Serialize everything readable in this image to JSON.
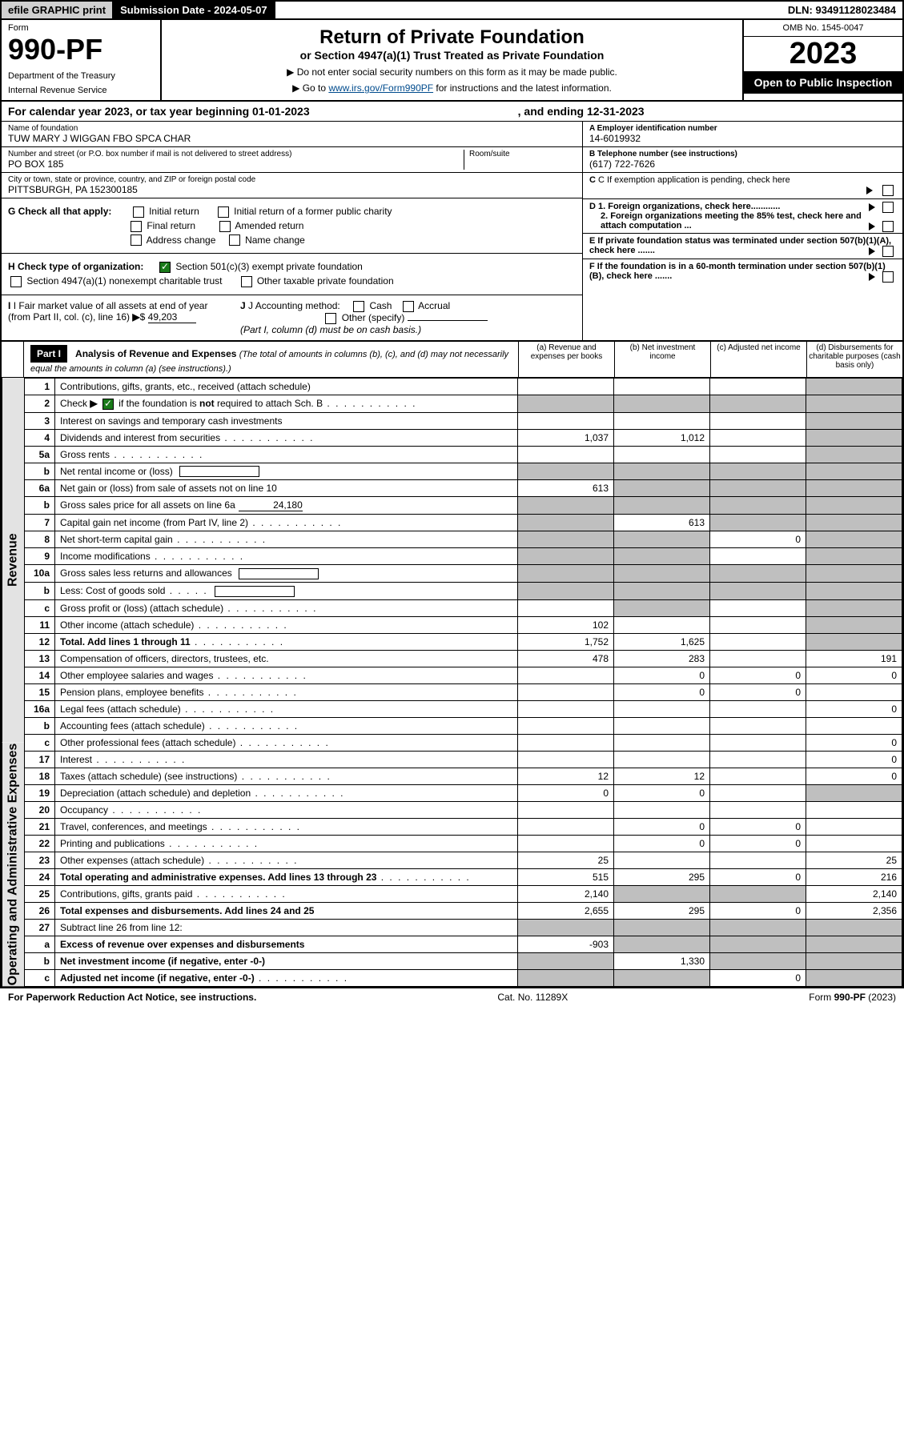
{
  "header": {
    "efile": "efile GRAPHIC print",
    "submission_label": "Submission Date - ",
    "submission_date": "2024-05-07",
    "dln_label": "DLN: ",
    "dln": "93491128023484"
  },
  "title": {
    "form_word": "Form",
    "form_number": "990-PF",
    "dept": "Department of the Treasury",
    "irs": "Internal Revenue Service",
    "main": "Return of Private Foundation",
    "sub": "or Section 4947(a)(1) Trust Treated as Private Foundation",
    "note1": "▶ Do not enter social security numbers on this form as it may be made public.",
    "note2_pre": "▶ Go to ",
    "note2_link": "www.irs.gov/Form990PF",
    "note2_post": " for instructions and the latest information.",
    "omb": "OMB No. 1545-0047",
    "year": "2023",
    "open": "Open to Public Inspection"
  },
  "cal_year": {
    "text": "For calendar year 2023, or tax year beginning 01-01-2023",
    "ending": ", and ending 12-31-2023"
  },
  "foundation": {
    "name_label": "Name of foundation",
    "name": "TUW MARY J WIGGAN FBO SPCA CHAR",
    "addr_label": "Number and street (or P.O. box number if mail is not delivered to street address)",
    "addr": "PO BOX 185",
    "room_label": "Room/suite",
    "city_label": "City or town, state or province, country, and ZIP or foreign postal code",
    "city": "PITTSBURGH, PA  152300185",
    "ein_label": "A Employer identification number",
    "ein": "14-6019932",
    "phone_label": "B Telephone number (see instructions)",
    "phone": "(617) 722-7626",
    "c_label": "C If exemption application is pending, check here",
    "d1": "D 1. Foreign organizations, check here............",
    "d2": "2. Foreign organizations meeting the 85% test, check here and attach computation ...",
    "e": "E  If private foundation status was terminated under section 507(b)(1)(A), check here .......",
    "f": "F  If the foundation is in a 60-month termination under section 507(b)(1)(B), check here .......",
    "g_label": "G Check all that apply:",
    "g_opts": [
      "Initial return",
      "Initial return of a former public charity",
      "Final return",
      "Amended return",
      "Address change",
      "Name change"
    ],
    "h_label": "H Check type of organization:",
    "h_opts": [
      "Section 501(c)(3) exempt private foundation",
      "Section 4947(a)(1) nonexempt charitable trust",
      "Other taxable private foundation"
    ],
    "i_label": "I Fair market value of all assets at end of year (from Part II, col. (c), line 16)",
    "i_value": "49,203",
    "j_label": "J Accounting method:",
    "j_opts": [
      "Cash",
      "Accrual",
      "Other (specify)"
    ],
    "j_note": "(Part I, column (d) must be on cash basis.)"
  },
  "part1": {
    "header": "Part I",
    "title": "Analysis of Revenue and Expenses",
    "title_note": "(The total of amounts in columns (b), (c), and (d) may not necessarily equal the amounts in column (a) (see instructions).)",
    "col_a": "(a)   Revenue and expenses per books",
    "col_b": "(b)   Net investment income",
    "col_c": "(c)   Adjusted net income",
    "col_d": "(d)   Disbursements for charitable purposes (cash basis only)"
  },
  "side_labels": {
    "revenue": "Revenue",
    "expenses": "Operating and Administrative Expenses"
  },
  "rows": [
    {
      "n": "1",
      "desc": "Contributions, gifts, grants, etc., received (attach schedule)",
      "a": "",
      "b": "",
      "c": "",
      "d": "",
      "grey": [
        "d"
      ]
    },
    {
      "n": "2",
      "desc": "Check ▶ ☑ if the foundation is not required to attach Sch. B",
      "dots": true,
      "a": "",
      "b": "",
      "c": "",
      "d": "",
      "grey": [
        "a",
        "b",
        "c",
        "d"
      ],
      "checked": true,
      "special": "check"
    },
    {
      "n": "3",
      "desc": "Interest on savings and temporary cash investments",
      "a": "",
      "b": "",
      "c": "",
      "d": "",
      "grey": [
        "d"
      ]
    },
    {
      "n": "4",
      "desc": "Dividends and interest from securities",
      "dots": true,
      "a": "1,037",
      "b": "1,012",
      "c": "",
      "d": "",
      "grey": [
        "d"
      ]
    },
    {
      "n": "5a",
      "desc": "Gross rents",
      "dots": true,
      "a": "",
      "b": "",
      "c": "",
      "d": "",
      "grey": [
        "d"
      ]
    },
    {
      "n": "b",
      "desc": "Net rental income or (loss)",
      "inline_box": true,
      "a": "",
      "b": "",
      "c": "",
      "d": "",
      "grey": [
        "a",
        "b",
        "c",
        "d"
      ]
    },
    {
      "n": "6a",
      "desc": "Net gain or (loss) from sale of assets not on line 10",
      "a": "613",
      "b": "",
      "c": "",
      "d": "",
      "grey": [
        "b",
        "c",
        "d"
      ]
    },
    {
      "n": "b",
      "desc": "Gross sales price for all assets on line 6a",
      "inline_underline": "24,180",
      "a": "",
      "b": "",
      "c": "",
      "d": "",
      "grey": [
        "a",
        "b",
        "c",
        "d"
      ]
    },
    {
      "n": "7",
      "desc": "Capital gain net income (from Part IV, line 2)",
      "dots": true,
      "a": "",
      "b": "613",
      "c": "",
      "d": "",
      "grey": [
        "a",
        "c",
        "d"
      ]
    },
    {
      "n": "8",
      "desc": "Net short-term capital gain",
      "dots": true,
      "a": "",
      "b": "",
      "c": "0",
      "d": "",
      "grey": [
        "a",
        "b",
        "d"
      ]
    },
    {
      "n": "9",
      "desc": "Income modifications",
      "dots": true,
      "a": "",
      "b": "",
      "c": "",
      "d": "",
      "grey": [
        "a",
        "b",
        "d"
      ]
    },
    {
      "n": "10a",
      "desc": "Gross sales less returns and allowances",
      "inline_box": true,
      "a": "",
      "b": "",
      "c": "",
      "d": "",
      "grey": [
        "a",
        "b",
        "c",
        "d"
      ]
    },
    {
      "n": "b",
      "desc": "Less: Cost of goods sold",
      "dots_short": true,
      "inline_box": true,
      "a": "",
      "b": "",
      "c": "",
      "d": "",
      "grey": [
        "a",
        "b",
        "c",
        "d"
      ]
    },
    {
      "n": "c",
      "desc": "Gross profit or (loss) (attach schedule)",
      "dots": true,
      "a": "",
      "b": "",
      "c": "",
      "d": "",
      "grey": [
        "b",
        "d"
      ]
    },
    {
      "n": "11",
      "desc": "Other income (attach schedule)",
      "dots": true,
      "a": "102",
      "b": "",
      "c": "",
      "d": "",
      "grey": [
        "d"
      ]
    },
    {
      "n": "12",
      "desc": "Total. Add lines 1 through 11",
      "dots": true,
      "bold": true,
      "a": "1,752",
      "b": "1,625",
      "c": "",
      "d": "",
      "grey": [
        "d"
      ]
    },
    {
      "n": "13",
      "desc": "Compensation of officers, directors, trustees, etc.",
      "a": "478",
      "b": "283",
      "c": "",
      "d": "191"
    },
    {
      "n": "14",
      "desc": "Other employee salaries and wages",
      "dots": true,
      "a": "",
      "b": "0",
      "c": "0",
      "d": "0"
    },
    {
      "n": "15",
      "desc": "Pension plans, employee benefits",
      "dots": true,
      "a": "",
      "b": "0",
      "c": "0",
      "d": ""
    },
    {
      "n": "16a",
      "desc": "Legal fees (attach schedule)",
      "dots": true,
      "a": "",
      "b": "",
      "c": "",
      "d": "0"
    },
    {
      "n": "b",
      "desc": "Accounting fees (attach schedule)",
      "dots": true,
      "a": "",
      "b": "",
      "c": "",
      "d": ""
    },
    {
      "n": "c",
      "desc": "Other professional fees (attach schedule)",
      "dots": true,
      "a": "",
      "b": "",
      "c": "",
      "d": "0"
    },
    {
      "n": "17",
      "desc": "Interest",
      "dots": true,
      "a": "",
      "b": "",
      "c": "",
      "d": "0"
    },
    {
      "n": "18",
      "desc": "Taxes (attach schedule) (see instructions)",
      "dots": true,
      "a": "12",
      "b": "12",
      "c": "",
      "d": "0"
    },
    {
      "n": "19",
      "desc": "Depreciation (attach schedule) and depletion",
      "dots": true,
      "a": "0",
      "b": "0",
      "c": "",
      "d": "",
      "grey": [
        "d"
      ]
    },
    {
      "n": "20",
      "desc": "Occupancy",
      "dots": true,
      "a": "",
      "b": "",
      "c": "",
      "d": ""
    },
    {
      "n": "21",
      "desc": "Travel, conferences, and meetings",
      "dots": true,
      "a": "",
      "b": "0",
      "c": "0",
      "d": ""
    },
    {
      "n": "22",
      "desc": "Printing and publications",
      "dots": true,
      "a": "",
      "b": "0",
      "c": "0",
      "d": ""
    },
    {
      "n": "23",
      "desc": "Other expenses (attach schedule)",
      "dots": true,
      "a": "25",
      "b": "",
      "c": "",
      "d": "25"
    },
    {
      "n": "24",
      "desc": "Total operating and administrative expenses. Add lines 13 through 23",
      "dots": true,
      "bold": true,
      "a": "515",
      "b": "295",
      "c": "0",
      "d": "216"
    },
    {
      "n": "25",
      "desc": "Contributions, gifts, grants paid",
      "dots": true,
      "a": "2,140",
      "b": "",
      "c": "",
      "d": "2,140",
      "grey": [
        "b",
        "c"
      ]
    },
    {
      "n": "26",
      "desc": "Total expenses and disbursements. Add lines 24 and 25",
      "bold": true,
      "a": "2,655",
      "b": "295",
      "c": "0",
      "d": "2,356"
    },
    {
      "n": "27",
      "desc": "Subtract line 26 from line 12:",
      "a": "",
      "b": "",
      "c": "",
      "d": "",
      "grey": [
        "a",
        "b",
        "c",
        "d"
      ]
    },
    {
      "n": "a",
      "desc": "Excess of revenue over expenses and disbursements",
      "bold": true,
      "a": "-903",
      "b": "",
      "c": "",
      "d": "",
      "grey": [
        "b",
        "c",
        "d"
      ]
    },
    {
      "n": "b",
      "desc": "Net investment income (if negative, enter -0-)",
      "bold": true,
      "a": "",
      "b": "1,330",
      "c": "",
      "d": "",
      "grey": [
        "a",
        "c",
        "d"
      ]
    },
    {
      "n": "c",
      "desc": "Adjusted net income (if negative, enter -0-)",
      "dots": true,
      "bold": true,
      "a": "",
      "b": "",
      "c": "0",
      "d": "",
      "grey": [
        "a",
        "b",
        "d"
      ]
    }
  ],
  "footer": {
    "left": "For Paperwork Reduction Act Notice, see instructions.",
    "center": "Cat. No. 11289X",
    "right": "Form 990-PF (2023)"
  },
  "colors": {
    "link": "#004b8d",
    "grey_cell": "#bfbfbf",
    "side_bg": "#e3e3e3",
    "check_green": "#1a7a1a"
  }
}
